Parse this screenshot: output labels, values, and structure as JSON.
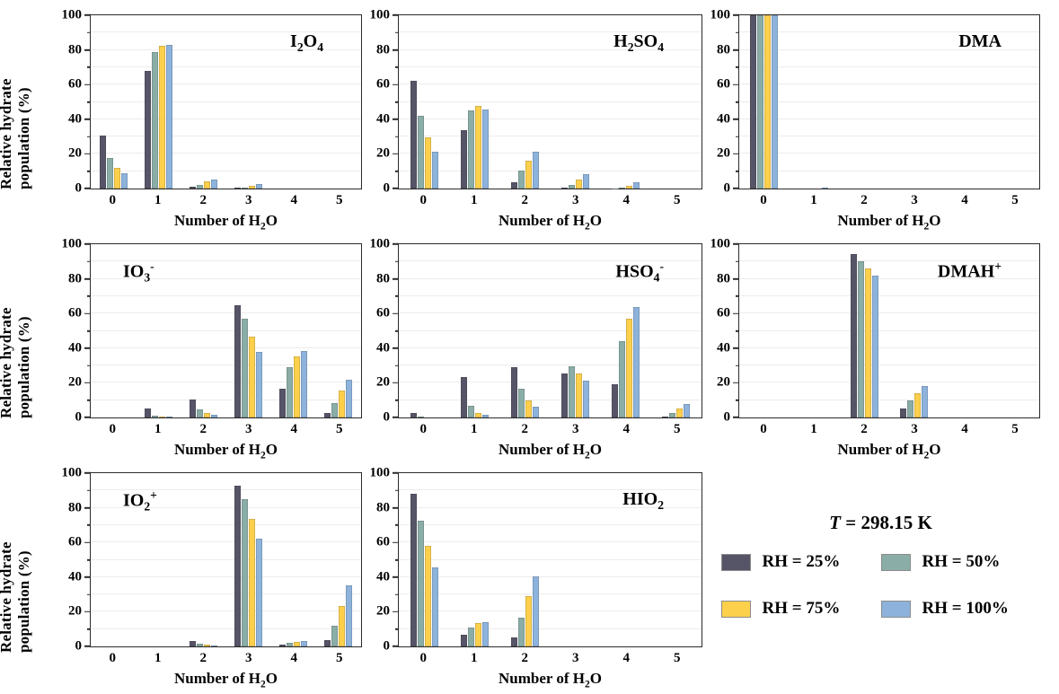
{
  "figure": {
    "y_axis_label": "Relative hydrate population (%)",
    "x_axis_label_text": "Number of H2O",
    "x_axis_label_segments": [
      [
        "Number of H",
        "n"
      ],
      [
        "2",
        "sub"
      ],
      [
        "O",
        "n"
      ]
    ],
    "categories": [
      "0",
      "1",
      "2",
      "3",
      "4",
      "5"
    ],
    "y_ticks": [
      0,
      20,
      40,
      60,
      80,
      100
    ],
    "y_minor_ticks": [
      10,
      30,
      50,
      70,
      90
    ],
    "y_gridlines": [
      10,
      20,
      30,
      40,
      50,
      60,
      70,
      80,
      90
    ],
    "ylim": [
      0,
      100
    ]
  },
  "colors": {
    "rh25": "#565467",
    "rh50": "#8bada7",
    "rh75": "#fdd04c",
    "rh100": "#8db3dc",
    "axis": "#2b2b2b",
    "grid": "#ececec"
  },
  "legend": {
    "title_text": "T = 298.15 K",
    "title_segments": [
      [
        "T",
        "i"
      ],
      [
        " = 298.15 K",
        "n"
      ]
    ],
    "items": [
      {
        "label": "RH = 25%",
        "color_key": "rh25"
      },
      {
        "label": "RH = 50%",
        "color_key": "rh50"
      },
      {
        "label": "RH = 75%",
        "color_key": "rh75"
      },
      {
        "label": "RH = 100%",
        "color_key": "rh100"
      }
    ]
  },
  "chart_data": [
    {
      "type": "bar",
      "name": "I2O4",
      "title_position": "right",
      "title_segments": [
        [
          "I",
          "n"
        ],
        [
          "2",
          "sub"
        ],
        [
          "O",
          "n"
        ],
        [
          "4",
          "sub"
        ]
      ],
      "categories": [
        "0",
        "1",
        "2",
        "3",
        "4",
        "5"
      ],
      "ylim": [
        0,
        100
      ],
      "series": [
        {
          "name": "RH = 25%",
          "color_key": "rh25",
          "values": [
            30.5,
            68,
            1,
            0.5,
            0,
            0
          ]
        },
        {
          "name": "RH = 50%",
          "color_key": "rh50",
          "values": [
            17.5,
            79,
            2,
            0.7,
            0,
            0
          ]
        },
        {
          "name": "RH = 75%",
          "color_key": "rh75",
          "values": [
            12,
            82.5,
            4,
            1.5,
            0,
            0
          ]
        },
        {
          "name": "RH = 100%",
          "color_key": "rh100",
          "values": [
            9,
            83,
            5,
            2.8,
            0,
            0
          ]
        }
      ]
    },
    {
      "type": "bar",
      "name": "H2SO4",
      "title_position": "right",
      "title_segments": [
        [
          "H",
          "n"
        ],
        [
          "2",
          "sub"
        ],
        [
          "SO",
          "n"
        ],
        [
          "4",
          "sub"
        ]
      ],
      "categories": [
        "0",
        "1",
        "2",
        "3",
        "4",
        "5"
      ],
      "ylim": [
        0,
        100
      ],
      "series": [
        {
          "name": "RH = 25%",
          "color_key": "rh25",
          "values": [
            62,
            33.5,
            3.5,
            0.3,
            0.2,
            0
          ]
        },
        {
          "name": "RH = 50%",
          "color_key": "rh50",
          "values": [
            42,
            45,
            10.5,
            2,
            0.5,
            0
          ]
        },
        {
          "name": "RH = 75%",
          "color_key": "rh75",
          "values": [
            29.5,
            47.5,
            16,
            5,
            1.5,
            0
          ]
        },
        {
          "name": "RH = 100%",
          "color_key": "rh100",
          "values": [
            21,
            45.5,
            21,
            8.5,
            3.5,
            0
          ]
        }
      ]
    },
    {
      "type": "bar",
      "name": "DMA",
      "title_position": "right",
      "title_segments": [
        [
          "DMA",
          "n"
        ]
      ],
      "categories": [
        "0",
        "1",
        "2",
        "3",
        "4",
        "5"
      ],
      "ylim": [
        0,
        100
      ],
      "series": [
        {
          "name": "RH = 25%",
          "color_key": "rh25",
          "values": [
            100,
            0,
            0,
            0,
            0,
            0
          ]
        },
        {
          "name": "RH = 50%",
          "color_key": "rh50",
          "values": [
            100,
            0,
            0,
            0,
            0,
            0
          ]
        },
        {
          "name": "RH = 75%",
          "color_key": "rh75",
          "values": [
            100,
            0,
            0,
            0,
            0,
            0
          ]
        },
        {
          "name": "RH = 100%",
          "color_key": "rh100",
          "values": [
            100,
            0.5,
            0,
            0,
            0,
            0
          ]
        }
      ]
    },
    {
      "type": "bar",
      "name": "IO3-",
      "title_position": "left",
      "title_segments": [
        [
          "IO",
          "n"
        ],
        [
          "3",
          "sub"
        ],
        [
          "-",
          "sup"
        ]
      ],
      "categories": [
        "0",
        "1",
        "2",
        "3",
        "4",
        "5"
      ],
      "ylim": [
        0,
        100
      ],
      "series": [
        {
          "name": "RH = 25%",
          "color_key": "rh25",
          "values": [
            0,
            5,
            10.5,
            65,
            16.5,
            2.5
          ]
        },
        {
          "name": "RH = 50%",
          "color_key": "rh50",
          "values": [
            0,
            1,
            4.5,
            57,
            29,
            8.5
          ]
        },
        {
          "name": "RH = 75%",
          "color_key": "rh75",
          "values": [
            0,
            0.3,
            2.5,
            46.5,
            35,
            15.5
          ]
        },
        {
          "name": "RH = 100%",
          "color_key": "rh100",
          "values": [
            0,
            0.3,
            1.5,
            38,
            38.5,
            22
          ]
        }
      ]
    },
    {
      "type": "bar",
      "name": "HSO4-",
      "title_position": "right",
      "title_segments": [
        [
          "HSO",
          "n"
        ],
        [
          "4",
          "sub"
        ],
        [
          "-",
          "sup"
        ]
      ],
      "categories": [
        "0",
        "1",
        "2",
        "3",
        "4",
        "5"
      ],
      "ylim": [
        0,
        100
      ],
      "series": [
        {
          "name": "RH = 25%",
          "color_key": "rh25",
          "values": [
            2.5,
            23.5,
            29,
            25.5,
            19,
            0.5
          ]
        },
        {
          "name": "RH = 50%",
          "color_key": "rh50",
          "values": [
            0.3,
            6.5,
            16.5,
            29.5,
            44,
            2.5
          ]
        },
        {
          "name": "RH = 75%",
          "color_key": "rh75",
          "values": [
            0,
            2.5,
            10,
            25.5,
            57,
            5
          ]
        },
        {
          "name": "RH = 100%",
          "color_key": "rh100",
          "values": [
            0,
            1.5,
            6,
            21.5,
            63.5,
            8
          ]
        }
      ]
    },
    {
      "type": "bar",
      "name": "DMAH+",
      "title_position": "right",
      "title_segments": [
        [
          "DMAH",
          "n"
        ],
        [
          "+",
          "sup"
        ]
      ],
      "categories": [
        "0",
        "1",
        "2",
        "3",
        "4",
        "5"
      ],
      "ylim": [
        0,
        100
      ],
      "series": [
        {
          "name": "RH = 25%",
          "color_key": "rh25",
          "values": [
            0,
            0,
            94.5,
            5,
            0,
            0
          ]
        },
        {
          "name": "RH = 50%",
          "color_key": "rh50",
          "values": [
            0,
            0,
            90,
            10,
            0,
            0
          ]
        },
        {
          "name": "RH = 75%",
          "color_key": "rh75",
          "values": [
            0,
            0,
            86,
            14,
            0,
            0
          ]
        },
        {
          "name": "RH = 100%",
          "color_key": "rh100",
          "values": [
            0,
            0,
            82,
            18,
            0,
            0
          ]
        }
      ]
    },
    {
      "type": "bar",
      "name": "IO2+",
      "title_position": "left",
      "title_segments": [
        [
          "IO",
          "n"
        ],
        [
          "2",
          "sub"
        ],
        [
          "+",
          "sup"
        ]
      ],
      "categories": [
        "0",
        "1",
        "2",
        "3",
        "4",
        "5"
      ],
      "ylim": [
        0,
        100
      ],
      "series": [
        {
          "name": "RH = 25%",
          "color_key": "rh25",
          "values": [
            0,
            0,
            3,
            92.5,
            1,
            3.5
          ]
        },
        {
          "name": "RH = 50%",
          "color_key": "rh50",
          "values": [
            0,
            0,
            1.5,
            85,
            2,
            12
          ]
        },
        {
          "name": "RH = 75%",
          "color_key": "rh75",
          "values": [
            0,
            0,
            1,
            73.5,
            2.5,
            23.5
          ]
        },
        {
          "name": "RH = 100%",
          "color_key": "rh100",
          "values": [
            0,
            0,
            0.5,
            62,
            3,
            35
          ]
        }
      ]
    },
    {
      "type": "bar",
      "name": "HIO2",
      "title_position": "right",
      "title_segments": [
        [
          "HIO",
          "n"
        ],
        [
          "2",
          "sub"
        ]
      ],
      "categories": [
        "0",
        "1",
        "2",
        "3",
        "4",
        "5"
      ],
      "ylim": [
        0,
        100
      ],
      "series": [
        {
          "name": "RH = 25%",
          "color_key": "rh25",
          "values": [
            88,
            6.5,
            5,
            0,
            0,
            0
          ]
        },
        {
          "name": "RH = 50%",
          "color_key": "rh50",
          "values": [
            72.5,
            11,
            16.5,
            0,
            0,
            0
          ]
        },
        {
          "name": "RH = 75%",
          "color_key": "rh75",
          "values": [
            58,
            13.5,
            29,
            0,
            0,
            0
          ]
        },
        {
          "name": "RH = 100%",
          "color_key": "rh100",
          "values": [
            45.5,
            14,
            40.5,
            0,
            0,
            0
          ]
        }
      ]
    }
  ]
}
